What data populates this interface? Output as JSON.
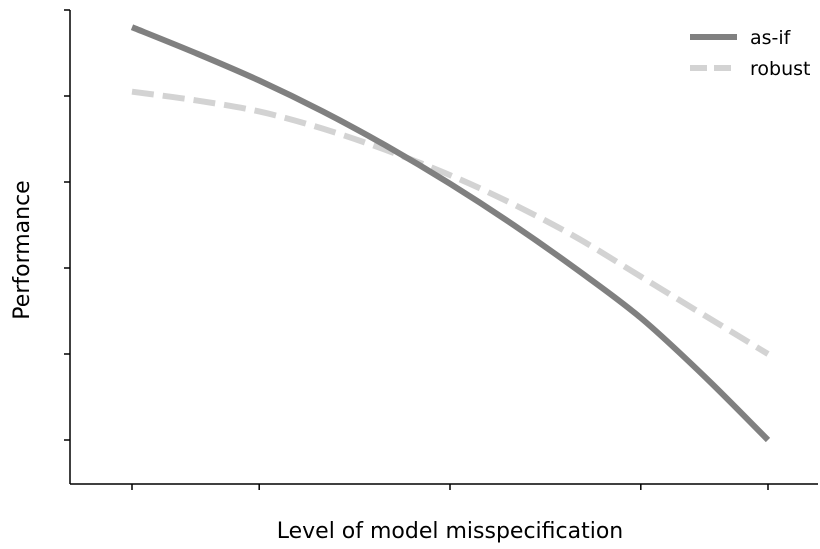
{
  "chart_data": {
    "type": "line",
    "xlabel": "Level of model misspecification",
    "ylabel": "Performance",
    "xlim": [
      -0.5,
      5.4
    ],
    "ylim": [
      -0.5,
      5.0
    ],
    "x_ticks": [
      0,
      1,
      2.5,
      4,
      5
    ],
    "y_ticks": [
      0,
      1,
      2,
      3,
      4,
      5
    ],
    "tick_labels_visible": false,
    "grid": false,
    "legend_position": "top-right",
    "series": [
      {
        "name": "as-if",
        "color": "#808080",
        "style": "solid",
        "x": [
          0,
          0.5,
          1,
          1.5,
          2,
          2.5,
          3,
          3.5,
          4,
          4.5,
          5
        ],
        "y": [
          4.8,
          4.5,
          4.18,
          3.82,
          3.42,
          2.98,
          2.5,
          1.98,
          1.42,
          0.74,
          0.0
        ]
      },
      {
        "name": "robust",
        "color": "#d3d3d3",
        "style": "dashed",
        "x": [
          0,
          0.5,
          1,
          1.5,
          2,
          2.5,
          3,
          3.5,
          4,
          4.5,
          5
        ],
        "y": [
          4.05,
          3.95,
          3.82,
          3.62,
          3.37,
          3.08,
          2.74,
          2.35,
          1.9,
          1.45,
          1.0
        ]
      }
    ]
  }
}
